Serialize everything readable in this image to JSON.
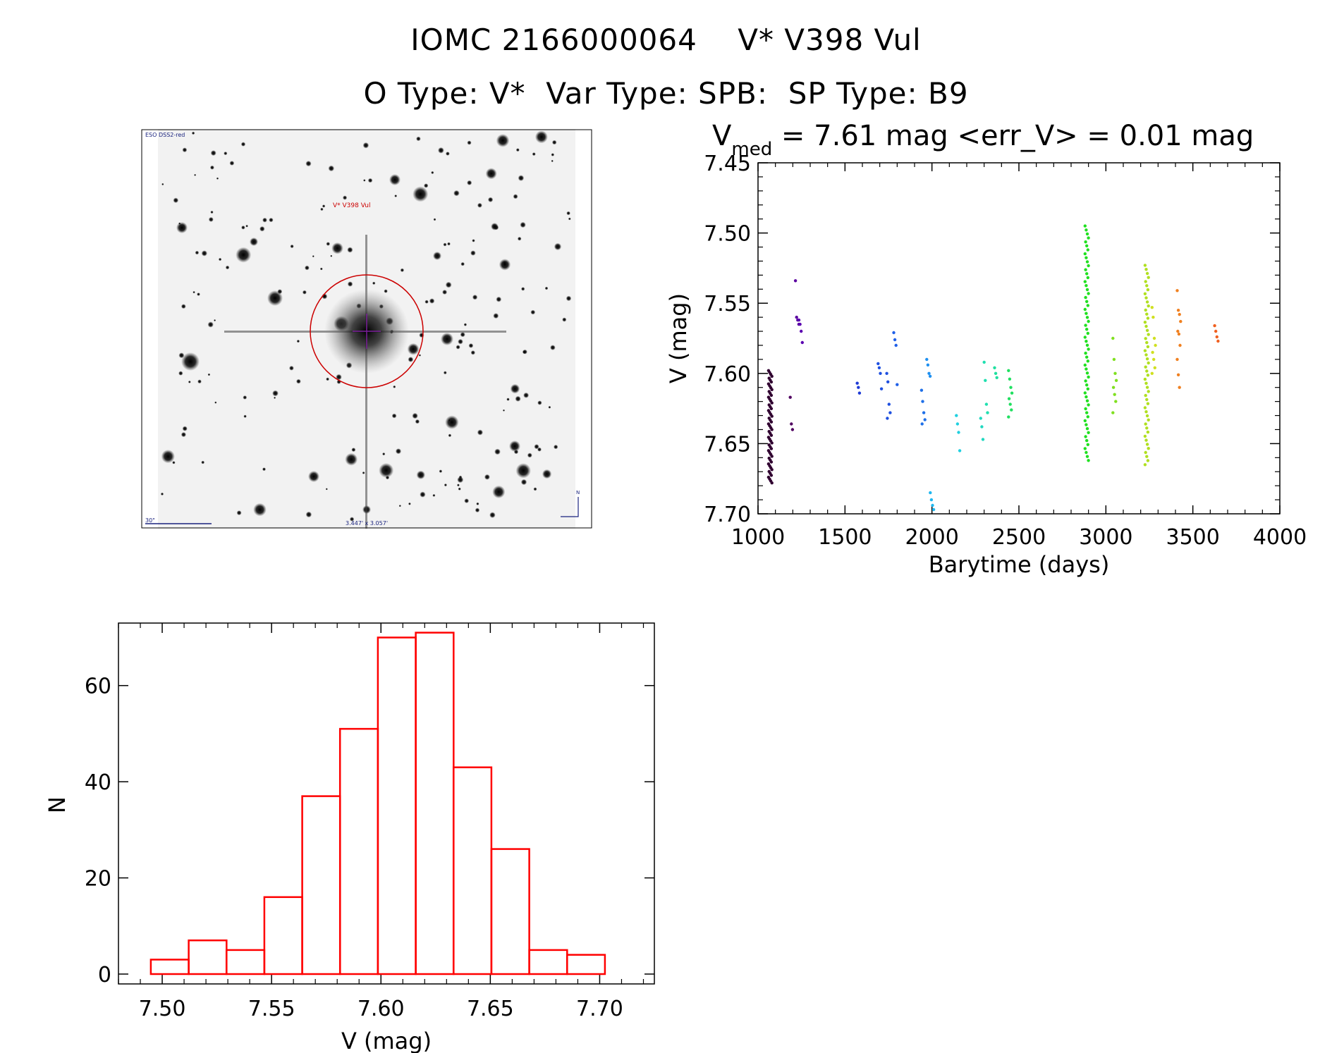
{
  "header": {
    "title": "IOMC 2166000064    V* V398 Vul",
    "subtitle": "O Type: V*  Var Type: SPB:  SP Type: B9"
  },
  "finder_image": {
    "survey_label": "ESO DSS2-red",
    "target_label": "V* V398 Vul",
    "scale_label": "30\"",
    "size_label": "3.447' x 3.057'",
    "north_label": "N",
    "circle_color": "#cc0000",
    "label_color": "#1a237e"
  },
  "chart_data": [
    {
      "type": "scatter",
      "title": "V_med = 7.61 mag <err_V> = 0.01 mag",
      "title_main": "V",
      "title_sub": "med",
      "title_rest": " = 7.61 mag <err_V> = 0.01 mag",
      "xlabel": "Barytime (days)",
      "ylabel": "V (mag)",
      "xlim": [
        1000,
        4000
      ],
      "ylim": [
        7.7,
        7.45
      ],
      "y_inverted": true,
      "xticks": [
        1000,
        1500,
        2000,
        2500,
        3000,
        3500,
        4000
      ],
      "yticks": [
        7.45,
        7.5,
        7.55,
        7.6,
        7.65,
        7.7
      ],
      "groups": [
        {
          "x": 1070,
          "ymin": 7.598,
          "ymax": 7.678,
          "n": 60,
          "color": "#300030"
        },
        {
          "x": 1195,
          "y": [
            7.617,
            7.636,
            7.64
          ],
          "color": "#500060"
        },
        {
          "x": 1225,
          "y": [
            7.534,
            7.56,
            7.562,
            7.565
          ],
          "color": "#5a00a0"
        },
        {
          "x": 1245,
          "y": [
            7.562,
            7.565,
            7.57,
            7.578
          ],
          "color": "#5a00b0"
        },
        {
          "x": 1580,
          "y": [
            7.607,
            7.61,
            7.614
          ],
          "color": "#1f3bd6"
        },
        {
          "x": 1700,
          "y": [
            7.593,
            7.596,
            7.6,
            7.611
          ],
          "color": "#1f50e0"
        },
        {
          "x": 1750,
          "y": [
            7.6,
            7.606,
            7.622,
            7.628,
            7.632
          ],
          "color": "#1f50e0"
        },
        {
          "x": 1790,
          "y": [
            7.571,
            7.576,
            7.58,
            7.608
          ],
          "color": "#2060e8"
        },
        {
          "x": 1950,
          "y": [
            7.612,
            7.62,
            7.628,
            7.633,
            7.636
          ],
          "color": "#1f70e8"
        },
        {
          "x": 1980,
          "y": [
            7.59,
            7.594,
            7.6,
            7.602
          ],
          "color": "#1f90f0"
        },
        {
          "x": 2000,
          "y": [
            7.685,
            7.69,
            7.694,
            7.697
          ],
          "color": "#20b8f0"
        },
        {
          "x": 2150,
          "y": [
            7.63,
            7.636,
            7.642,
            7.655
          ],
          "color": "#20d0e0"
        },
        {
          "x": 2290,
          "y": [
            7.632,
            7.638,
            7.647
          ],
          "color": "#20d8c0"
        },
        {
          "x": 2310,
          "y": [
            7.592,
            7.605,
            7.622,
            7.628
          ],
          "color": "#20e0b0"
        },
        {
          "x": 2370,
          "y": [
            7.596,
            7.6,
            7.603
          ],
          "color": "#20e0a0"
        },
        {
          "x": 2450,
          "y": [
            7.598,
            7.604,
            7.61,
            7.614,
            7.618,
            7.622,
            7.626,
            7.631
          ],
          "color": "#20e060"
        },
        {
          "x": 2890,
          "ymin": 7.495,
          "ymax": 7.662,
          "n": 60,
          "color": "#20e020"
        },
        {
          "x": 3050,
          "y": [
            7.575,
            7.59,
            7.6,
            7.605,
            7.61,
            7.615,
            7.62,
            7.628
          ],
          "color": "#80e020"
        },
        {
          "x": 3235,
          "ymin": 7.523,
          "ymax": 7.665,
          "n": 50,
          "color": "#b0e020"
        },
        {
          "x": 3275,
          "y": [
            7.553,
            7.56,
            7.575,
            7.58,
            7.585,
            7.59,
            7.596,
            7.6
          ],
          "color": "#d0e020"
        },
        {
          "x": 3420,
          "y": [
            7.541,
            7.555,
            7.558,
            7.563,
            7.57,
            7.572,
            7.58,
            7.59,
            7.601,
            7.61
          ],
          "color": "#f08020"
        },
        {
          "x": 3635,
          "y": [
            7.566,
            7.57,
            7.574,
            7.577
          ],
          "color": "#f06020"
        }
      ]
    },
    {
      "type": "bar",
      "subtype": "histogram",
      "xlabel": "V (mag)",
      "ylabel": "N",
      "xlim": [
        7.48,
        7.725
      ],
      "ylim": [
        0,
        73
      ],
      "xticks": [
        7.5,
        7.55,
        7.6,
        7.65,
        7.7
      ],
      "yticks": [
        0,
        20,
        40,
        60
      ],
      "bin_edges": [
        7.4948,
        7.5121,
        7.5294,
        7.5467,
        7.564,
        7.5813,
        7.5986,
        7.6159,
        7.6332,
        7.6505,
        7.6678,
        7.6851,
        7.7024
      ],
      "counts": [
        3,
        7,
        5,
        16,
        37,
        51,
        70,
        71,
        43,
        26,
        5,
        4
      ],
      "color": "#ff0000"
    }
  ]
}
